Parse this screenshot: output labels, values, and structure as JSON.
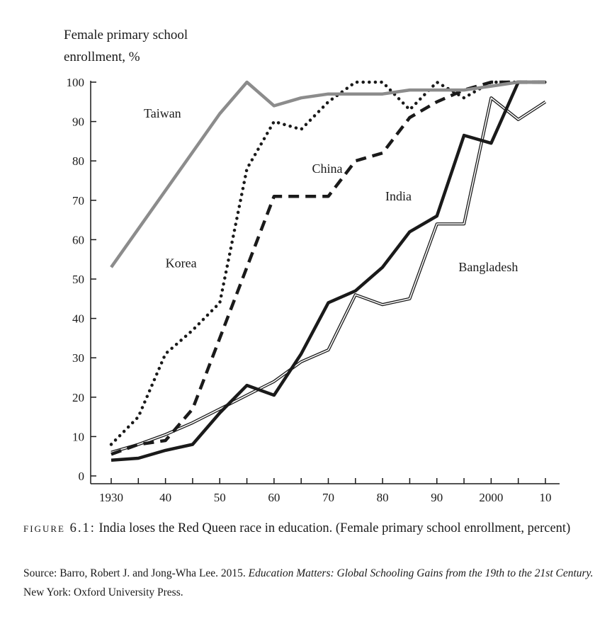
{
  "chart_data": {
    "type": "line",
    "ylabel_line1": "Female primary school",
    "ylabel_line2": "enrollment, %",
    "ylim": [
      0,
      100
    ],
    "xlim": [
      1930,
      2010
    ],
    "y_ticks": [
      0,
      10,
      20,
      30,
      40,
      50,
      60,
      70,
      80,
      90,
      100
    ],
    "x_ticks": [
      {
        "value": 1930,
        "label": "1930"
      },
      {
        "value": 1940,
        "label": "40"
      },
      {
        "value": 1950,
        "label": "50"
      },
      {
        "value": 1960,
        "label": "60"
      },
      {
        "value": 1970,
        "label": "70"
      },
      {
        "value": 1980,
        "label": "80"
      },
      {
        "value": 1990,
        "label": "90"
      },
      {
        "value": 2000,
        "label": "2000"
      },
      {
        "value": 2010,
        "label": "10"
      }
    ],
    "grid": false,
    "legend": "inline labels",
    "series": [
      {
        "name": "Taiwan",
        "style": "gray-solid",
        "x": [
          1930,
          1950,
          1955,
          1960,
          1965,
          1970,
          1975,
          1980,
          1985,
          1990,
          1995,
          2000,
          2005,
          2010
        ],
        "y": [
          53,
          92,
          100,
          94,
          96,
          97,
          97,
          97,
          98,
          98,
          98,
          99,
          100,
          100
        ]
      },
      {
        "name": "Korea",
        "style": "dotted",
        "x": [
          1930,
          1935,
          1940,
          1945,
          1950,
          1955,
          1960,
          1965,
          1970,
          1975,
          1980,
          1985,
          1990,
          1995,
          2000,
          2005,
          2010
        ],
        "y": [
          8,
          15,
          31,
          37,
          44,
          78,
          90,
          88,
          95,
          100,
          100,
          93,
          100,
          96,
          100,
          100,
          100
        ]
      },
      {
        "name": "China",
        "style": "dashed",
        "x": [
          1930,
          1935,
          1940,
          1945,
          1950,
          1955,
          1960,
          1965,
          1970,
          1975,
          1980,
          1985,
          1990,
          1995,
          2000,
          2005,
          2010
        ],
        "y": [
          5.5,
          8,
          9,
          17,
          35,
          53,
          71,
          71,
          71,
          80,
          82,
          91,
          95,
          98,
          100,
          100,
          100
        ]
      },
      {
        "name": "India",
        "style": "thick-solid",
        "x": [
          1930,
          1935,
          1940,
          1945,
          1950,
          1955,
          1960,
          1965,
          1970,
          1975,
          1980,
          1985,
          1990,
          1995,
          2000,
          2005,
          2010
        ],
        "y": [
          4,
          4.5,
          6.5,
          8,
          16,
          23,
          20.5,
          31,
          44,
          47,
          53,
          62,
          66,
          86.5,
          84.5,
          100,
          100
        ]
      },
      {
        "name": "Bangladesh",
        "style": "double-line",
        "x": [
          1930,
          1935,
          1940,
          1945,
          1950,
          1955,
          1960,
          1965,
          1970,
          1975,
          1980,
          1985,
          1990,
          1995,
          2000,
          2005,
          2010
        ],
        "y": [
          6,
          8,
          10.5,
          13.5,
          17,
          20.5,
          24,
          29,
          32,
          46,
          43.5,
          45,
          64,
          64,
          96,
          90.5,
          95
        ]
      }
    ],
    "labels": [
      {
        "text": "Taiwan",
        "series": "Taiwan",
        "x": 1936,
        "y": 91
      },
      {
        "text": "Korea",
        "series": "Korea",
        "x": 1940,
        "y": 53
      },
      {
        "text": "China",
        "series": "China",
        "x": 1967,
        "y": 77
      },
      {
        "text": "India",
        "series": "India",
        "x": 1980.5,
        "y": 70
      },
      {
        "text": "Bangladesh",
        "series": "Bangladesh",
        "x": 1994,
        "y": 52
      }
    ]
  },
  "caption": {
    "figure_label": "figure 6.1:",
    "text": "India loses the Red Queen race in education. (Female primary school enrollment, percent)"
  },
  "source": {
    "prefix": "Source: Barro, Robert J. and Jong-Wha Lee. 2015.",
    "title": "Education Matters: Global Schooling Gains from the 19th to the 21st Century.",
    "suffix": "New York: Oxford University Press."
  }
}
